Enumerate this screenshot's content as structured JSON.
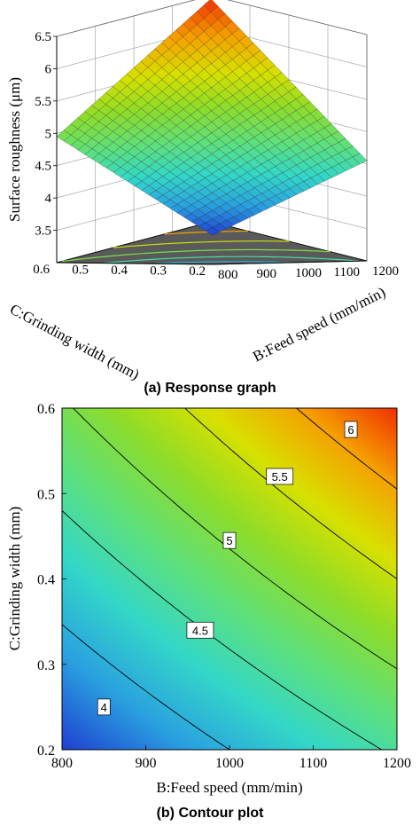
{
  "chart_data": [
    {
      "type": "surface",
      "caption": "(a) Response graph",
      "zlabel": "Surface roughness (μm)",
      "xlabel": "B:Feed speed (mm/min)",
      "ylabel": "C:Grinding width (mm)",
      "x_ticks": [
        "800",
        "900",
        "1000",
        "1100",
        "1200"
      ],
      "y_ticks": [
        "0.2",
        "0.3",
        "0.4",
        "0.5",
        "0.6"
      ],
      "z_ticks": [
        "3.5",
        "4",
        "4.5",
        "5",
        "5.5",
        "6",
        "6.5"
      ],
      "xlim": [
        800,
        1200
      ],
      "ylim": [
        0.2,
        0.6
      ],
      "zlim": [
        3.0,
        6.5
      ],
      "colormap": [
        "#1f3fd1",
        "#2aa0e0",
        "#33d7c8",
        "#5fe07a",
        "#8ddc2a",
        "#d8e000",
        "#f5a000",
        "#f03000"
      ],
      "grid": true
    },
    {
      "type": "contour",
      "caption": "(b) Contour plot",
      "xlabel": "B:Feed speed (mm/min)",
      "ylabel": "C:Grinding width (mm)",
      "x_ticks": [
        "800",
        "900",
        "1000",
        "1100",
        "1200"
      ],
      "y_ticks": [
        "0.2",
        "0.3",
        "0.4",
        "0.5",
        "0.6"
      ],
      "xlim": [
        800,
        1200
      ],
      "ylim": [
        0.2,
        0.6
      ],
      "contour_levels": [
        {
          "level": 4.0,
          "label": "4",
          "label_at": [
            850,
            0.25
          ]
        },
        {
          "level": 4.5,
          "label": "4.5",
          "label_at": [
            965,
            0.34
          ]
        },
        {
          "level": 5.0,
          "label": "5",
          "label_at": [
            1000,
            0.445
          ]
        },
        {
          "level": 5.5,
          "label": "5.5",
          "label_at": [
            1060,
            0.52
          ]
        },
        {
          "level": 6.0,
          "label": "6",
          "label_at": [
            1145,
            0.575
          ]
        }
      ],
      "response_estimate": {
        "corner_800_0.2": 3.45,
        "corner_1200_0.2": 4.55,
        "corner_800_0.6": 4.95,
        "corner_1200_0.6": 6.45
      }
    }
  ]
}
